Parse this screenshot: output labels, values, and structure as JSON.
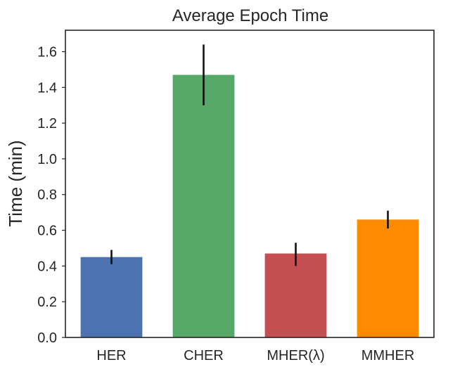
{
  "chart_data": {
    "type": "bar",
    "title": "Average Epoch Time",
    "xlabel": "",
    "ylabel": "Time (min)",
    "categories": [
      "HER",
      "CHER",
      "MHER(λ)",
      "MMHER"
    ],
    "values": [
      0.45,
      1.47,
      0.47,
      0.66
    ],
    "error_low": [
      0.41,
      1.3,
      0.4,
      0.61
    ],
    "error_high": [
      0.49,
      1.64,
      0.53,
      0.71
    ],
    "colors": [
      "#4c72b0",
      "#55a868",
      "#c44e52",
      "#ff8c00"
    ],
    "error_color": "#111111",
    "ylim": [
      0,
      1.72
    ],
    "yticks": [
      "0.0",
      "0.2",
      "0.4",
      "0.6",
      "0.8",
      "1.0",
      "1.2",
      "1.4",
      "1.6"
    ],
    "grid": false,
    "legend": "none"
  }
}
